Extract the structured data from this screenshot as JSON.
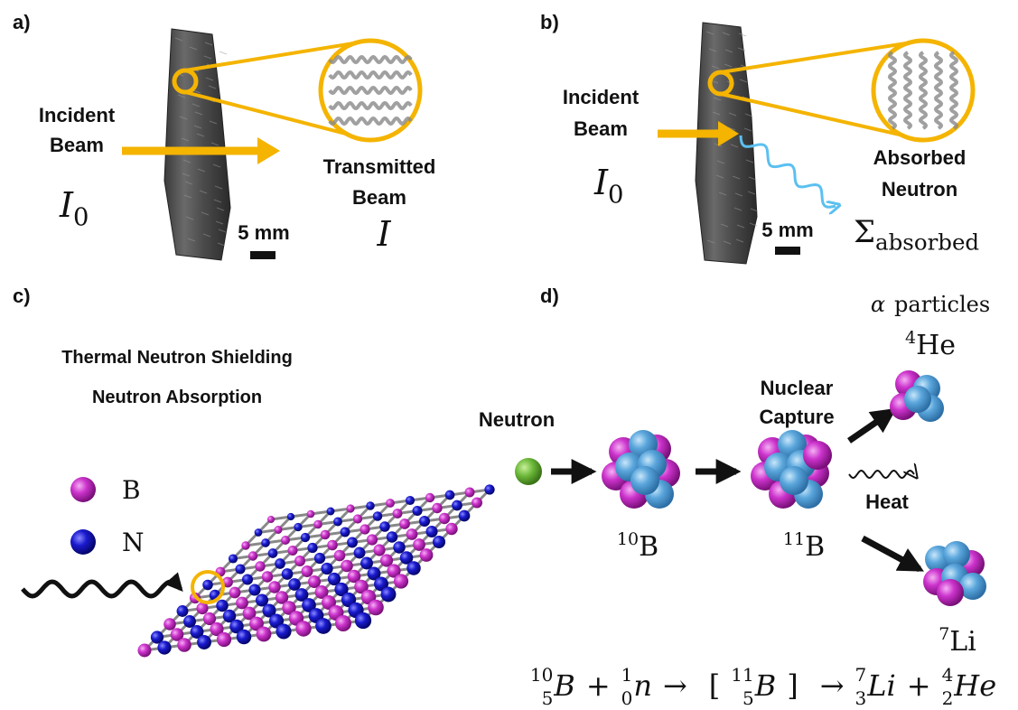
{
  "panel_a": {
    "label": "a)",
    "incident_beam": [
      "Incident",
      "Beam"
    ],
    "incident_intensity": {
      "symbol": "I",
      "subscript": "0"
    },
    "transmitted_beam": [
      "Transmitted",
      "Beam"
    ],
    "transmitted_intensity": "I",
    "scale_bar": "5 mm"
  },
  "panel_b": {
    "label": "b)",
    "incident_beam": [
      "Incident",
      "Beam"
    ],
    "incident_intensity": {
      "symbol": "I",
      "subscript": "0"
    },
    "absorbed_neutron": [
      "Absorbed",
      "Neutron"
    ],
    "cross_section": {
      "symbol": "Σ",
      "subscript": "absorbed"
    },
    "scale_bar": "5 mm"
  },
  "panel_c": {
    "label": "c)",
    "title_lines": [
      "Thermal Neutron Shielding",
      "Neutron Absorption"
    ],
    "legend": [
      "B",
      "N"
    ]
  },
  "panel_d": {
    "label": "d)",
    "alpha_label": {
      "symbol": "α",
      "text": "particles"
    },
    "helium_4": {
      "mass": "4",
      "symbol": "He"
    },
    "nuclear_capture": [
      "Nuclear",
      "Capture"
    ],
    "neutron": "Neutron",
    "heat": "Heat",
    "boron_10": {
      "mass": "10",
      "symbol": "B"
    },
    "boron_11": {
      "mass": "11",
      "symbol": "B"
    },
    "lithium_7": {
      "mass": "7",
      "symbol": "Li"
    },
    "equation": [
      {
        "mass": "10",
        "z": "5",
        "symbol": "B"
      },
      "+",
      {
        "mass": "1",
        "z": "0",
        "symbol": "n"
      },
      "→",
      "[",
      {
        "mass": "11",
        "z": "5",
        "symbol": "B"
      },
      "]",
      "→",
      {
        "mass": "7",
        "z": "3",
        "symbol": "Li"
      },
      "+",
      {
        "mass": "4",
        "z": "2",
        "symbol": "He"
      }
    ]
  }
}
